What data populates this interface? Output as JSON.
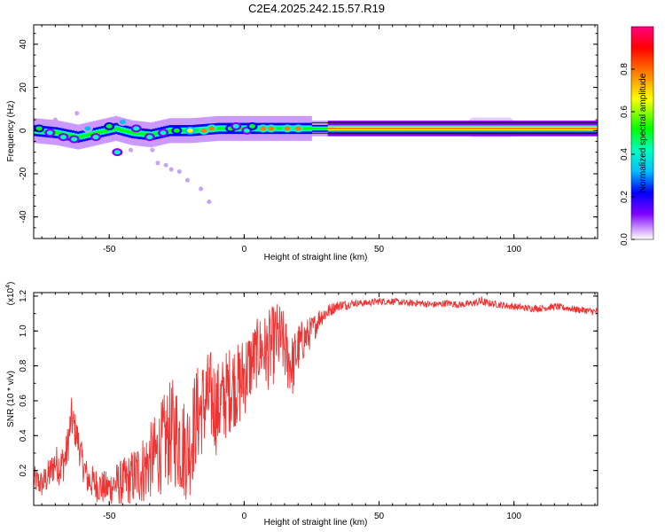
{
  "figure_title": "C2E4.2025.242.15.57.R19",
  "chart_data": [
    {
      "type": "heatmap",
      "title": "",
      "xlabel": "Height of straight line (km)",
      "ylabel": "Frequency (Hz)",
      "xlim": [
        -78,
        131
      ],
      "ylim": [
        -50,
        49
      ],
      "xticks": [
        -50,
        0,
        50,
        100
      ],
      "yticks": [
        -40,
        -20,
        0,
        20,
        40
      ],
      "colorbar": {
        "label": "Normalized spectral amplitude",
        "range": [
          0,
          1
        ],
        "ticks": [
          "0.0",
          "0.2",
          "0.4",
          "0.6",
          "0.8"
        ],
        "colors": [
          "#ffffff",
          "#cc99ff",
          "#7f00ff",
          "#0000ff",
          "#00bfff",
          "#00ffbf",
          "#00ff00",
          "#ffff00",
          "#ff8000",
          "#ff0000",
          "#ff0080"
        ]
      },
      "band_center_hz": [
        [
          -78,
          0
        ],
        [
          -70,
          -1
        ],
        [
          -62,
          -3
        ],
        [
          -55,
          -1
        ],
        [
          -48,
          1
        ],
        [
          -42,
          -1
        ],
        [
          -35,
          -2
        ],
        [
          -28,
          0
        ],
        [
          -20,
          0
        ],
        [
          -10,
          1
        ],
        [
          0,
          1
        ],
        [
          20,
          1
        ],
        [
          60,
          1
        ],
        [
          131,
          1
        ]
      ],
      "blobs": [
        {
          "x": -76,
          "f": 1,
          "amp": 0.55
        },
        {
          "x": -72,
          "f": -1,
          "amp": 0.5
        },
        {
          "x": -67,
          "f": -3,
          "amp": 0.45
        },
        {
          "x": -63,
          "f": -4,
          "amp": 0.5
        },
        {
          "x": -58,
          "f": 1,
          "amp": 0.4
        },
        {
          "x": -55,
          "f": -3,
          "amp": 0.45
        },
        {
          "x": -50,
          "f": 2,
          "amp": 0.55
        },
        {
          "x": -47,
          "f": -10,
          "amp": 0.5
        },
        {
          "x": -45,
          "f": 4,
          "amp": 0.35
        },
        {
          "x": -40,
          "f": 1,
          "amp": 0.45
        },
        {
          "x": -35,
          "f": -3,
          "amp": 0.5
        },
        {
          "x": -30,
          "f": -1,
          "amp": 0.45
        },
        {
          "x": -25,
          "f": 0,
          "amp": 0.6
        },
        {
          "x": -20,
          "f": 0,
          "amp": 0.7
        },
        {
          "x": -15,
          "f": 0,
          "amp": 0.75
        },
        {
          "x": -12,
          "f": 1,
          "amp": 0.8
        },
        {
          "x": -5,
          "f": 1,
          "amp": 0.55
        },
        {
          "x": -3,
          "f": 2,
          "amp": 0.5
        },
        {
          "x": 1,
          "f": 0,
          "amp": 0.45
        },
        {
          "x": 3,
          "f": 2,
          "amp": 0.6
        },
        {
          "x": 7,
          "f": 1,
          "amp": 0.8
        },
        {
          "x": 10,
          "f": 1,
          "amp": 0.75
        },
        {
          "x": 16,
          "f": 1,
          "amp": 0.8
        },
        {
          "x": 20,
          "f": 1,
          "amp": 0.75
        }
      ],
      "faint_scatter": [
        {
          "x": -75,
          "f": -4
        },
        {
          "x": -70,
          "f": 5
        },
        {
          "x": -62,
          "f": 8
        },
        {
          "x": -60,
          "f": -6
        },
        {
          "x": -52,
          "f": -4
        },
        {
          "x": -42,
          "f": -9
        },
        {
          "x": -34,
          "f": -9
        },
        {
          "x": -32,
          "f": -15
        },
        {
          "x": -29,
          "f": -16
        },
        {
          "x": -27,
          "f": -18
        },
        {
          "x": -24,
          "f": -19
        },
        {
          "x": -21,
          "f": -23
        },
        {
          "x": -16,
          "f": -27
        },
        {
          "x": -13,
          "f": -33
        }
      ],
      "wide_band_regions": [
        {
          "x0": 83,
          "x1": 100,
          "f0": -3,
          "f1": 6
        },
        {
          "x0": 100,
          "x1": 116,
          "f0": -2,
          "f1": 4
        }
      ]
    },
    {
      "type": "line",
      "title": "",
      "xlabel": "Height of straight line (km)",
      "ylabel": "SNR (10 * v/v)",
      "multiplier_label": "(x10",
      "multiplier_exponent": "4",
      "xlim": [
        -78,
        131
      ],
      "ylim": [
        0,
        1.22
      ],
      "xticks": [
        -50,
        0,
        50,
        100
      ],
      "yticks": [
        "0.2",
        "0.4",
        "0.6",
        "0.8",
        "1.0",
        "1.2"
      ],
      "color": "#ee3333",
      "x": [
        -78,
        -75,
        -72,
        -70,
        -68,
        -66,
        -64,
        -62,
        -60,
        -58,
        -55,
        -52,
        -50,
        -48,
        -45,
        -42,
        -40,
        -38,
        -35,
        -32,
        -30,
        -28,
        -26,
        -24,
        -22,
        -20,
        -18,
        -16,
        -14,
        -12,
        -10,
        -8,
        -6,
        -4,
        -2,
        0,
        2,
        4,
        6,
        8,
        10,
        12,
        14,
        16,
        18,
        20,
        22,
        24,
        26,
        28,
        30,
        32,
        34,
        36,
        38,
        40,
        45,
        50,
        55,
        60,
        65,
        70,
        75,
        80,
        85,
        88,
        90,
        95,
        100,
        105,
        110,
        115,
        120,
        125,
        131
      ],
      "y_base": [
        0.15,
        0.12,
        0.18,
        0.25,
        0.22,
        0.28,
        0.5,
        0.4,
        0.25,
        0.15,
        0.12,
        0.1,
        0.1,
        0.12,
        0.13,
        0.15,
        0.18,
        0.2,
        0.25,
        0.3,
        0.35,
        0.4,
        0.42,
        0.38,
        0.32,
        0.35,
        0.5,
        0.55,
        0.6,
        0.62,
        0.55,
        0.6,
        0.65,
        0.7,
        0.68,
        0.75,
        0.8,
        0.85,
        0.9,
        0.88,
        0.9,
        0.95,
        0.95,
        0.85,
        0.8,
        0.9,
        0.95,
        0.98,
        1.02,
        1.08,
        1.1,
        1.12,
        1.14,
        1.15,
        1.15,
        1.16,
        1.16,
        1.17,
        1.17,
        1.16,
        1.16,
        1.15,
        1.16,
        1.15,
        1.16,
        1.17,
        1.16,
        1.15,
        1.14,
        1.13,
        1.13,
        1.14,
        1.13,
        1.12,
        1.11
      ],
      "noise_amplitude": [
        0.08,
        0.08,
        0.1,
        0.1,
        0.12,
        0.12,
        0.12,
        0.1,
        0.1,
        0.1,
        0.1,
        0.1,
        0.1,
        0.12,
        0.14,
        0.16,
        0.18,
        0.2,
        0.22,
        0.25,
        0.28,
        0.3,
        0.32,
        0.32,
        0.3,
        0.3,
        0.3,
        0.28,
        0.28,
        0.28,
        0.28,
        0.26,
        0.26,
        0.25,
        0.25,
        0.25,
        0.22,
        0.2,
        0.2,
        0.22,
        0.24,
        0.22,
        0.2,
        0.2,
        0.18,
        0.15,
        0.12,
        0.1,
        0.08,
        0.06,
        0.05,
        0.04,
        0.03,
        0.03,
        0.03,
        0.02,
        0.02,
        0.02,
        0.02,
        0.02,
        0.02,
        0.02,
        0.02,
        0.02,
        0.02,
        0.03,
        0.02,
        0.02,
        0.02,
        0.02,
        0.02,
        0.02,
        0.02,
        0.02,
        0.02
      ]
    }
  ]
}
